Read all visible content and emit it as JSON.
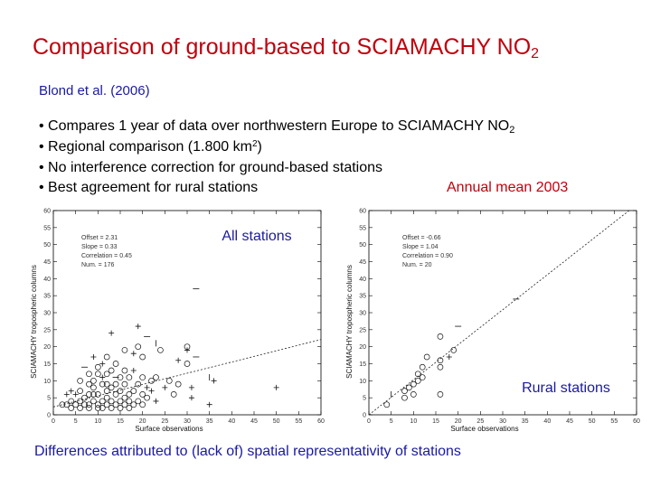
{
  "slide": {
    "title_main": "Comparison of ground-based to SCIAMACHY NO",
    "title_sub": "2",
    "citation": "Blond et al. (2006)",
    "bullets": [
      {
        "pre": "• Compares 1 year of data over northwestern Europe to SCIAMACHY NO",
        "sub": "2",
        "sup": "",
        "post": ""
      },
      {
        "pre": "• Regional comparison (1.800 km",
        "sub": "",
        "sup": "2",
        "post": ")"
      },
      {
        "pre": "• No interference correction for ground-based stations",
        "sub": "",
        "sup": "",
        "post": ""
      },
      {
        "pre": "• Best agreement for rural stations",
        "sub": "",
        "sup": "",
        "post": ""
      }
    ],
    "annual_label": "Annual mean 2003",
    "footer": "Differences attributed to (lack of) spatial representativity of stations",
    "colors": {
      "title": "#c0000c",
      "accent": "#1a1aa0"
    }
  },
  "chart_data": [
    {
      "type": "scatter",
      "overlay_label": "All stations",
      "xlabel": "Surface observations",
      "ylabel": "SCIAMACHY tropospheric columns",
      "xlim": [
        0,
        60
      ],
      "ylim": [
        0,
        60
      ],
      "xticks": [
        0,
        5,
        10,
        15,
        20,
        25,
        30,
        35,
        40,
        45,
        50,
        55,
        60
      ],
      "yticks": [
        0,
        5,
        10,
        15,
        20,
        25,
        30,
        35,
        40,
        45,
        50,
        55,
        60
      ],
      "stats": [
        "Offset = 2.31",
        "Slope = 0.33",
        "Correlation = 0.45",
        "Num. = 176"
      ],
      "fit": {
        "offset": 2.31,
        "slope": 0.33
      },
      "points": [
        {
          "x": 19,
          "y": 26,
          "m": "+"
        },
        {
          "x": 13,
          "y": 24,
          "m": "+"
        },
        {
          "x": 21,
          "y": 23,
          "m": "-"
        },
        {
          "x": 23,
          "y": 21,
          "m": "|"
        },
        {
          "x": 24,
          "y": 19,
          "m": "o"
        },
        {
          "x": 19,
          "y": 20,
          "m": "o"
        },
        {
          "x": 16,
          "y": 19,
          "m": "o"
        },
        {
          "x": 20,
          "y": 17,
          "m": "o"
        },
        {
          "x": 18,
          "y": 18,
          "m": "+"
        },
        {
          "x": 30,
          "y": 20,
          "m": "o"
        },
        {
          "x": 30,
          "y": 19,
          "m": "+"
        },
        {
          "x": 28,
          "y": 16,
          "m": "+"
        },
        {
          "x": 30,
          "y": 15,
          "m": "o"
        },
        {
          "x": 32,
          "y": 17,
          "m": "-"
        },
        {
          "x": 35,
          "y": 11,
          "m": "|"
        },
        {
          "x": 36,
          "y": 10,
          "m": "+"
        },
        {
          "x": 31,
          "y": 8,
          "m": "+"
        },
        {
          "x": 35,
          "y": 3,
          "m": "+"
        },
        {
          "x": 50,
          "y": 8,
          "m": "+"
        },
        {
          "x": 32,
          "y": 37,
          "m": "-"
        },
        {
          "x": 26,
          "y": 10,
          "m": "o"
        },
        {
          "x": 25,
          "y": 8,
          "m": "+"
        },
        {
          "x": 27,
          "y": 6,
          "m": "o"
        },
        {
          "x": 28,
          "y": 9,
          "m": "o"
        },
        {
          "x": 31,
          "y": 5,
          "m": "+"
        },
        {
          "x": 12,
          "y": 17,
          "m": "o"
        },
        {
          "x": 14,
          "y": 15,
          "m": "o"
        },
        {
          "x": 13,
          "y": 13,
          "m": "o"
        },
        {
          "x": 11,
          "y": 15,
          "m": "+"
        },
        {
          "x": 9,
          "y": 17,
          "m": "+"
        },
        {
          "x": 7,
          "y": 14,
          "m": "-"
        },
        {
          "x": 10,
          "y": 12,
          "m": "o"
        },
        {
          "x": 12,
          "y": 12,
          "m": "o"
        },
        {
          "x": 15,
          "y": 11,
          "m": "o"
        },
        {
          "x": 17,
          "y": 11,
          "m": "o"
        },
        {
          "x": 18,
          "y": 13,
          "m": "+"
        },
        {
          "x": 20,
          "y": 11,
          "m": "o"
        },
        {
          "x": 22,
          "y": 10,
          "m": "o"
        },
        {
          "x": 16,
          "y": 9,
          "m": "o"
        },
        {
          "x": 14,
          "y": 9,
          "m": "o"
        },
        {
          "x": 11,
          "y": 9,
          "m": "o"
        },
        {
          "x": 13,
          "y": 8,
          "m": "o"
        },
        {
          "x": 9,
          "y": 8,
          "m": "o"
        },
        {
          "x": 12,
          "y": 7,
          "m": "o"
        },
        {
          "x": 15,
          "y": 7,
          "m": "o"
        },
        {
          "x": 18,
          "y": 7,
          "m": "o"
        },
        {
          "x": 20,
          "y": 6,
          "m": "o"
        },
        {
          "x": 22,
          "y": 7,
          "m": "+"
        },
        {
          "x": 17,
          "y": 6,
          "m": "o"
        },
        {
          "x": 16,
          "y": 5,
          "m": "o"
        },
        {
          "x": 14,
          "y": 6,
          "m": "o"
        },
        {
          "x": 10,
          "y": 6,
          "m": "o"
        },
        {
          "x": 8,
          "y": 6,
          "m": "o"
        },
        {
          "x": 7,
          "y": 5,
          "m": "o"
        },
        {
          "x": 9,
          "y": 4,
          "m": "o"
        },
        {
          "x": 11,
          "y": 4,
          "m": "o"
        },
        {
          "x": 12,
          "y": 5,
          "m": "o"
        },
        {
          "x": 13,
          "y": 4,
          "m": "o"
        },
        {
          "x": 15,
          "y": 4,
          "m": "o"
        },
        {
          "x": 17,
          "y": 4,
          "m": "o"
        },
        {
          "x": 19,
          "y": 4,
          "m": "o"
        },
        {
          "x": 21,
          "y": 5,
          "m": "o"
        },
        {
          "x": 23,
          "y": 4,
          "m": "+"
        },
        {
          "x": 6,
          "y": 4,
          "m": "o"
        },
        {
          "x": 5,
          "y": 3,
          "m": "o"
        },
        {
          "x": 7,
          "y": 3,
          "m": "o"
        },
        {
          "x": 8,
          "y": 3,
          "m": "o"
        },
        {
          "x": 10,
          "y": 3,
          "m": "o"
        },
        {
          "x": 12,
          "y": 3,
          "m": "o"
        },
        {
          "x": 14,
          "y": 3,
          "m": "o"
        },
        {
          "x": 16,
          "y": 3,
          "m": "o"
        },
        {
          "x": 18,
          "y": 3,
          "m": "o"
        },
        {
          "x": 20,
          "y": 3,
          "m": "o"
        },
        {
          "x": 4,
          "y": 2,
          "m": "o"
        },
        {
          "x": 6,
          "y": 2,
          "m": "o"
        },
        {
          "x": 8,
          "y": 2,
          "m": "o"
        },
        {
          "x": 10,
          "y": 2,
          "m": "o"
        },
        {
          "x": 11,
          "y": 2,
          "m": "o"
        },
        {
          "x": 13,
          "y": 2,
          "m": "o"
        },
        {
          "x": 15,
          "y": 2,
          "m": "o"
        },
        {
          "x": 17,
          "y": 2,
          "m": "o"
        },
        {
          "x": 3,
          "y": 3,
          "m": "o"
        },
        {
          "x": 9,
          "y": 10,
          "m": "o"
        },
        {
          "x": 11,
          "y": 11,
          "m": "+"
        },
        {
          "x": 8,
          "y": 9,
          "m": "o"
        },
        {
          "x": 6,
          "y": 7,
          "m": "o"
        },
        {
          "x": 5,
          "y": 6,
          "m": "+"
        },
        {
          "x": 4,
          "y": 7,
          "m": "+"
        },
        {
          "x": 3,
          "y": 6,
          "m": "+"
        },
        {
          "x": 4,
          "y": 4,
          "m": "o"
        },
        {
          "x": 2,
          "y": 3,
          "m": "o"
        },
        {
          "x": 19,
          "y": 9,
          "m": "o"
        },
        {
          "x": 21,
          "y": 8,
          "m": "+"
        },
        {
          "x": 23,
          "y": 11,
          "m": "o"
        },
        {
          "x": 16,
          "y": 13,
          "m": "o"
        },
        {
          "x": 14,
          "y": 11,
          "m": "-"
        },
        {
          "x": 10,
          "y": 14,
          "m": "o"
        },
        {
          "x": 8,
          "y": 12,
          "m": "o"
        },
        {
          "x": 6,
          "y": 10,
          "m": "o"
        },
        {
          "x": 9,
          "y": 6,
          "m": "o"
        },
        {
          "x": 12,
          "y": 9,
          "m": "o"
        }
      ]
    },
    {
      "type": "scatter",
      "overlay_label": "Rural stations",
      "xlabel": "Surface observations",
      "ylabel": "SCIAMACHY tropospheric columns",
      "xlim": [
        0,
        60
      ],
      "ylim": [
        0,
        60
      ],
      "xticks": [
        0,
        5,
        10,
        15,
        20,
        25,
        30,
        35,
        40,
        45,
        50,
        55,
        60
      ],
      "yticks": [
        0,
        5,
        10,
        15,
        20,
        25,
        30,
        35,
        40,
        45,
        50,
        55,
        60
      ],
      "stats": [
        "Offset = -0.66",
        "Slope = 1.04",
        "Correlation = 0.90",
        "Num. = 20"
      ],
      "fit": {
        "offset": -0.66,
        "slope": 1.04
      },
      "points": [
        {
          "x": 16,
          "y": 23,
          "m": "o"
        },
        {
          "x": 19,
          "y": 19,
          "m": "o"
        },
        {
          "x": 18,
          "y": 17,
          "m": "+"
        },
        {
          "x": 20,
          "y": 26,
          "m": "-"
        },
        {
          "x": 16,
          "y": 16,
          "m": "o"
        },
        {
          "x": 13,
          "y": 17,
          "m": "o"
        },
        {
          "x": 16,
          "y": 14,
          "m": "o"
        },
        {
          "x": 12,
          "y": 14,
          "m": "o"
        },
        {
          "x": 11,
          "y": 12,
          "m": "o"
        },
        {
          "x": 12,
          "y": 11,
          "m": "o"
        },
        {
          "x": 11,
          "y": 10,
          "m": "o"
        },
        {
          "x": 10,
          "y": 9,
          "m": "o"
        },
        {
          "x": 9,
          "y": 8,
          "m": "o"
        },
        {
          "x": 8,
          "y": 7,
          "m": "o"
        },
        {
          "x": 10,
          "y": 6,
          "m": "o"
        },
        {
          "x": 8,
          "y": 5,
          "m": "o"
        },
        {
          "x": 5,
          "y": 6,
          "m": "|"
        },
        {
          "x": 4,
          "y": 3,
          "m": "o"
        },
        {
          "x": 16,
          "y": 6,
          "m": "o"
        },
        {
          "x": 33,
          "y": 34,
          "m": "-"
        }
      ]
    }
  ]
}
